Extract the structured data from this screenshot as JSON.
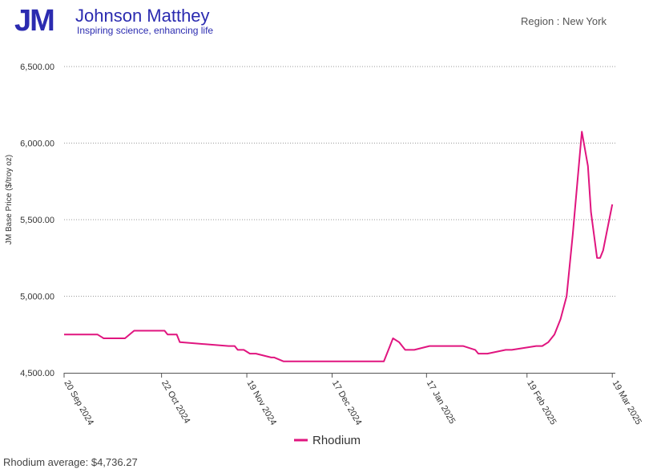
{
  "header": {
    "logo_mark": "JM",
    "brand_name": "Johnson Matthey",
    "tagline": "Inspiring science, enhancing life",
    "region": "Region : New York"
  },
  "colors": {
    "series": "#e0157f",
    "brand": "#2b2bb0"
  },
  "footer": {
    "average": "Rhodium average: $4,736.27"
  },
  "chart_data": {
    "type": "line",
    "ylabel": "JM Base Price ($/troy oz)",
    "xlabel": "",
    "ylim": [
      4500,
      6500
    ],
    "yticks": [
      4500,
      5000,
      5500,
      6000,
      6500
    ],
    "ytick_labels": [
      "4,500.00",
      "5,000.00",
      "5,500.00",
      "6,000.00",
      "6,500.00"
    ],
    "xticks": [
      "2024-09-20",
      "2024-10-22",
      "2024-11-19",
      "2024-12-17",
      "2025-01-17",
      "2025-02-19",
      "2025-03-19"
    ],
    "xtick_labels": [
      "20 Sep 2024",
      "22 Oct 2024",
      "19 Nov 2024",
      "17 Dec 2024",
      "17 Jan 2025",
      "19 Feb 2025",
      "19 Mar 2025"
    ],
    "xlim": [
      "2024-09-20",
      "2025-03-20"
    ],
    "grid": "horizontal dotted",
    "legend": "bottom-center",
    "series": [
      {
        "name": "Rhodium",
        "x": [
          "2024-09-20",
          "2024-10-01",
          "2024-10-03",
          "2024-10-10",
          "2024-10-13",
          "2024-10-23",
          "2024-10-24",
          "2024-10-27",
          "2024-10-28",
          "2024-11-13",
          "2024-11-15",
          "2024-11-16",
          "2024-11-18",
          "2024-11-20",
          "2024-11-22",
          "2024-11-27",
          "2024-11-28",
          "2024-12-01",
          "2025-01-03",
          "2025-01-05",
          "2025-01-06",
          "2025-01-08",
          "2025-01-10",
          "2025-01-13",
          "2025-01-18",
          "2025-01-29",
          "2025-02-02",
          "2025-02-03",
          "2025-02-06",
          "2025-02-12",
          "2025-02-14",
          "2025-02-22",
          "2025-02-24",
          "2025-02-26",
          "2025-02-28",
          "2025-03-02",
          "2025-03-04",
          "2025-03-06",
          "2025-03-09",
          "2025-03-11",
          "2025-03-12",
          "2025-03-14",
          "2025-03-15",
          "2025-03-16",
          "2025-03-17",
          "2025-03-19"
        ],
        "values": [
          4750,
          4750,
          4725,
          4725,
          4775,
          4775,
          4750,
          4750,
          4700,
          4675,
          4675,
          4650,
          4650,
          4625,
          4625,
          4600,
          4600,
          4575,
          4575,
          4675,
          4725,
          4700,
          4650,
          4650,
          4675,
          4675,
          4650,
          4625,
          4625,
          4650,
          4650,
          4675,
          4675,
          4700,
          4750,
          4850,
          5000,
          5400,
          6075,
          5850,
          5550,
          5250,
          5250,
          5300,
          5400,
          5600
        ]
      }
    ]
  }
}
